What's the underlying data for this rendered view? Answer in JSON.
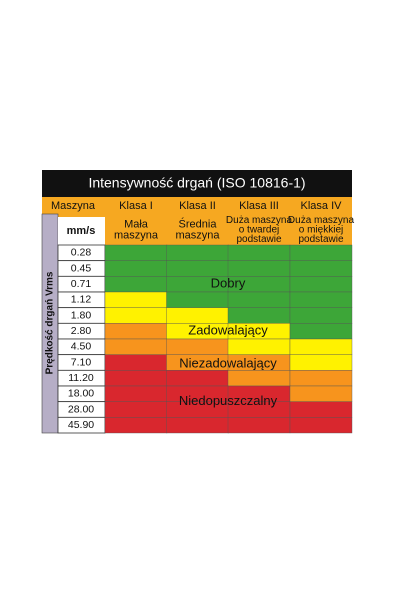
{
  "title": "Intensywność drgań (ISO 10816-1)",
  "header": {
    "machine": "Maszyna",
    "unit": "mm/s",
    "classes": [
      {
        "name": "Klasa I",
        "desc": [
          "Mała",
          "maszyna"
        ]
      },
      {
        "name": "Klasa II",
        "desc": [
          "Średnia",
          "maszyna"
        ]
      },
      {
        "name": "Klasa III",
        "desc": [
          "Duża maszyna",
          "o twardej",
          "podstawie"
        ]
      },
      {
        "name": "Klasa IV",
        "desc": [
          "Duża maszyna",
          "o miękkiej",
          "podstawie"
        ]
      }
    ]
  },
  "side_label": "Prędkość drgań Vrms",
  "rows": [
    "0.28",
    "0.45",
    "0.71",
    "1.12",
    "1.80",
    "2.80",
    "4.50",
    "7.10",
    "11.20",
    "18.00",
    "28.00",
    "45.90"
  ],
  "zones": [
    {
      "label": "Dobry",
      "color": "#3da638"
    },
    {
      "label": "Zadowalający",
      "color": "#fff200"
    },
    {
      "label": "Niezadowalający",
      "color": "#f7941d"
    },
    {
      "label": "Niedopuszczalny",
      "color": "#d9272e"
    }
  ]
}
